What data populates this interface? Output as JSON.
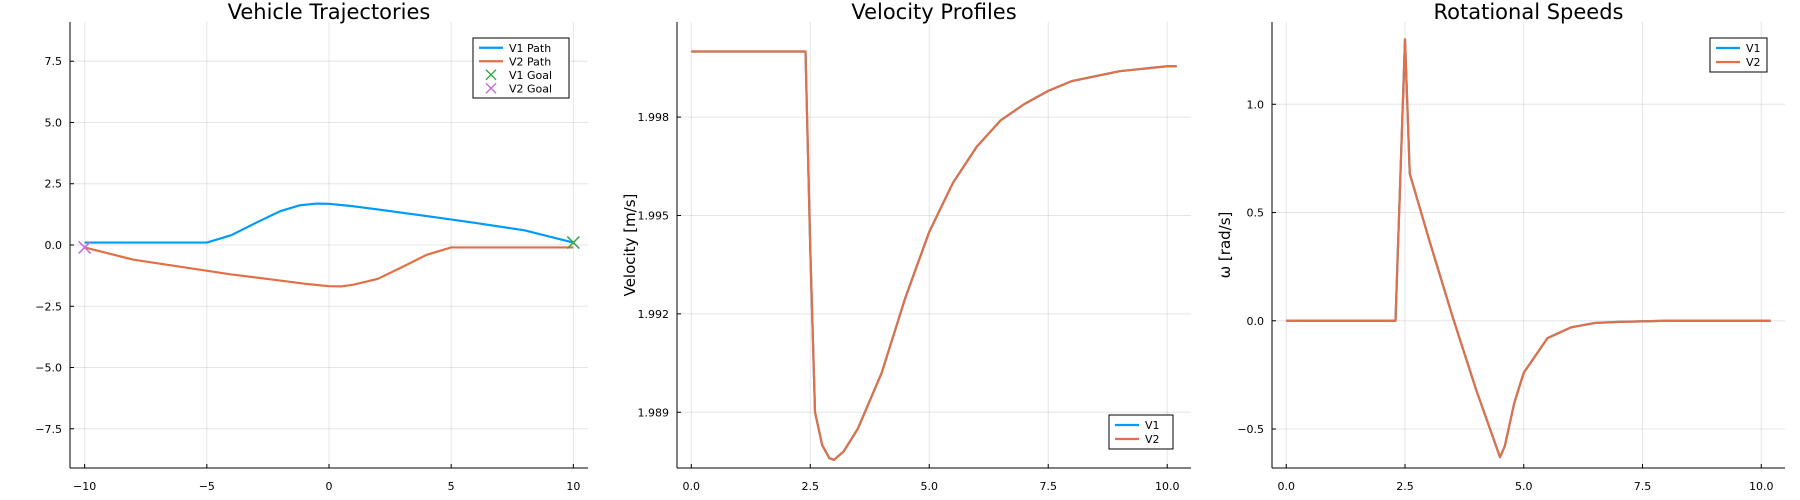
{
  "chart_data": [
    {
      "type": "line",
      "title": "Vehicle Trajectories",
      "xlabel": "",
      "ylabel": "",
      "xlim": [
        -10.6,
        10.6
      ],
      "ylim": [
        -9.1,
        9.1
      ],
      "xticks": [
        -10,
        -5,
        0,
        5,
        10
      ],
      "xtick_labels": [
        "−10",
        "−5",
        "0",
        "5",
        "10"
      ],
      "yticks": [
        -7.5,
        -5.0,
        -2.5,
        0.0,
        2.5,
        5.0,
        7.5
      ],
      "ytick_labels": [
        "−7.5",
        "−5.0",
        "−2.5",
        "0.0",
        "2.5",
        "5.0",
        "7.5"
      ],
      "grid": true,
      "legend_position": "top-right",
      "series": [
        {
          "name": "V1 Path",
          "kind": "line",
          "color": "#009af9",
          "x": [
            -10,
            -8,
            -6,
            -5,
            -4,
            -3,
            -2,
            -1.2,
            -0.5,
            0,
            1,
            2,
            4,
            6,
            8,
            10
          ],
          "y": [
            0.1,
            0.1,
            0.1,
            0.1,
            0.4,
            0.9,
            1.38,
            1.62,
            1.69,
            1.68,
            1.58,
            1.45,
            1.18,
            0.9,
            0.6,
            0.1
          ]
        },
        {
          "name": "V2 Path",
          "kind": "line",
          "color": "#e26f46",
          "x": [
            -10,
            -8,
            -6,
            -4,
            -2,
            -1,
            0,
            0.5,
            1,
            2,
            3,
            4,
            5,
            6,
            8,
            10
          ],
          "y": [
            -0.1,
            -0.6,
            -0.9,
            -1.2,
            -1.45,
            -1.58,
            -1.68,
            -1.69,
            -1.62,
            -1.38,
            -0.9,
            -0.4,
            -0.1,
            -0.1,
            -0.1,
            -0.1
          ]
        },
        {
          "name": "V1 Goal",
          "kind": "marker",
          "marker": "x",
          "color": "#3ea44e",
          "x": [
            10
          ],
          "y": [
            0.1
          ]
        },
        {
          "name": "V2 Goal",
          "kind": "marker",
          "marker": "x",
          "color": "#c271d2",
          "x": [
            -10
          ],
          "y": [
            -0.1
          ]
        }
      ]
    },
    {
      "type": "line",
      "title": "Velocity Profiles",
      "xlabel": "",
      "ylabel": "Velocity [m/s]",
      "xlim": [
        -0.3,
        10.5
      ],
      "ylim": [
        1.9873,
        2.0009
      ],
      "xticks": [
        0,
        2.5,
        5,
        7.5,
        10
      ],
      "xtick_labels": [
        "0.0",
        "2.5",
        "5.0",
        "7.5",
        "10.0"
      ],
      "yticks": [
        1.989,
        1.992,
        1.995,
        1.998
      ],
      "ytick_labels": [
        "1.989",
        "1.992",
        "1.995",
        "1.998"
      ],
      "grid": true,
      "legend_position": "bottom-right",
      "series": [
        {
          "name": "V1",
          "color": "#009af9",
          "x": [
            0,
            1,
            2,
            2.4,
            2.5,
            2.6,
            2.75,
            2.9,
            3.0,
            3.2,
            3.5,
            4,
            4.5,
            5,
            5.5,
            6,
            6.5,
            7,
            7.5,
            8,
            9,
            10,
            10.2
          ],
          "y": [
            2.0,
            2.0,
            2.0,
            2.0,
            1.994,
            1.989,
            1.988,
            1.9876,
            1.98755,
            1.9878,
            1.9885,
            1.9902,
            1.9925,
            1.9945,
            1.996,
            1.9971,
            1.9979,
            1.9984,
            1.9988,
            1.9991,
            1.9994,
            1.99955,
            1.99955
          ]
        },
        {
          "name": "V2",
          "color": "#e26f46",
          "x": [
            0,
            1,
            2,
            2.4,
            2.5,
            2.6,
            2.75,
            2.9,
            3.0,
            3.2,
            3.5,
            4,
            4.5,
            5,
            5.5,
            6,
            6.5,
            7,
            7.5,
            8,
            9,
            10,
            10.2
          ],
          "y": [
            2.0,
            2.0,
            2.0,
            2.0,
            1.994,
            1.989,
            1.988,
            1.9876,
            1.98755,
            1.9878,
            1.9885,
            1.9902,
            1.9925,
            1.9945,
            1.996,
            1.9971,
            1.9979,
            1.9984,
            1.9988,
            1.9991,
            1.9994,
            1.99955,
            1.99955
          ]
        }
      ]
    },
    {
      "type": "line",
      "title": "Rotational Speeds",
      "xlabel": "",
      "ylabel": "ω [rad/s]",
      "xlim": [
        -0.3,
        10.5
      ],
      "ylim": [
        -0.68,
        1.38
      ],
      "xticks": [
        0,
        2.5,
        5,
        7.5,
        10
      ],
      "xtick_labels": [
        "0.0",
        "2.5",
        "5.0",
        "7.5",
        "10.0"
      ],
      "yticks": [
        -0.5,
        0.0,
        0.5,
        1.0
      ],
      "ytick_labels": [
        "−0.5",
        "0.0",
        "0.5",
        "1.0"
      ],
      "grid": true,
      "legend_position": "top-right",
      "series": [
        {
          "name": "V1",
          "color": "#009af9",
          "x": [
            0,
            1,
            2,
            2.3,
            2.5,
            2.6,
            3.0,
            3.5,
            4.0,
            4.5,
            4.6,
            4.8,
            5.0,
            5.5,
            6,
            6.5,
            7,
            8,
            9,
            10,
            10.2
          ],
          "y": [
            0,
            0,
            0,
            0,
            1.3,
            0.68,
            0.38,
            0.02,
            -0.32,
            -0.63,
            -0.58,
            -0.38,
            -0.24,
            -0.08,
            -0.03,
            -0.01,
            -0.005,
            0,
            0,
            0,
            0
          ]
        },
        {
          "name": "V2",
          "color": "#e26f46",
          "x": [
            0,
            1,
            2,
            2.3,
            2.5,
            2.6,
            3.0,
            3.5,
            4.0,
            4.5,
            4.6,
            4.8,
            5.0,
            5.5,
            6,
            6.5,
            7,
            8,
            9,
            10,
            10.2
          ],
          "y": [
            0,
            0,
            0,
            0,
            1.3,
            0.68,
            0.38,
            0.02,
            -0.32,
            -0.63,
            -0.58,
            -0.38,
            -0.24,
            -0.08,
            -0.03,
            -0.01,
            -0.005,
            0,
            0,
            0,
            0
          ]
        }
      ]
    }
  ]
}
